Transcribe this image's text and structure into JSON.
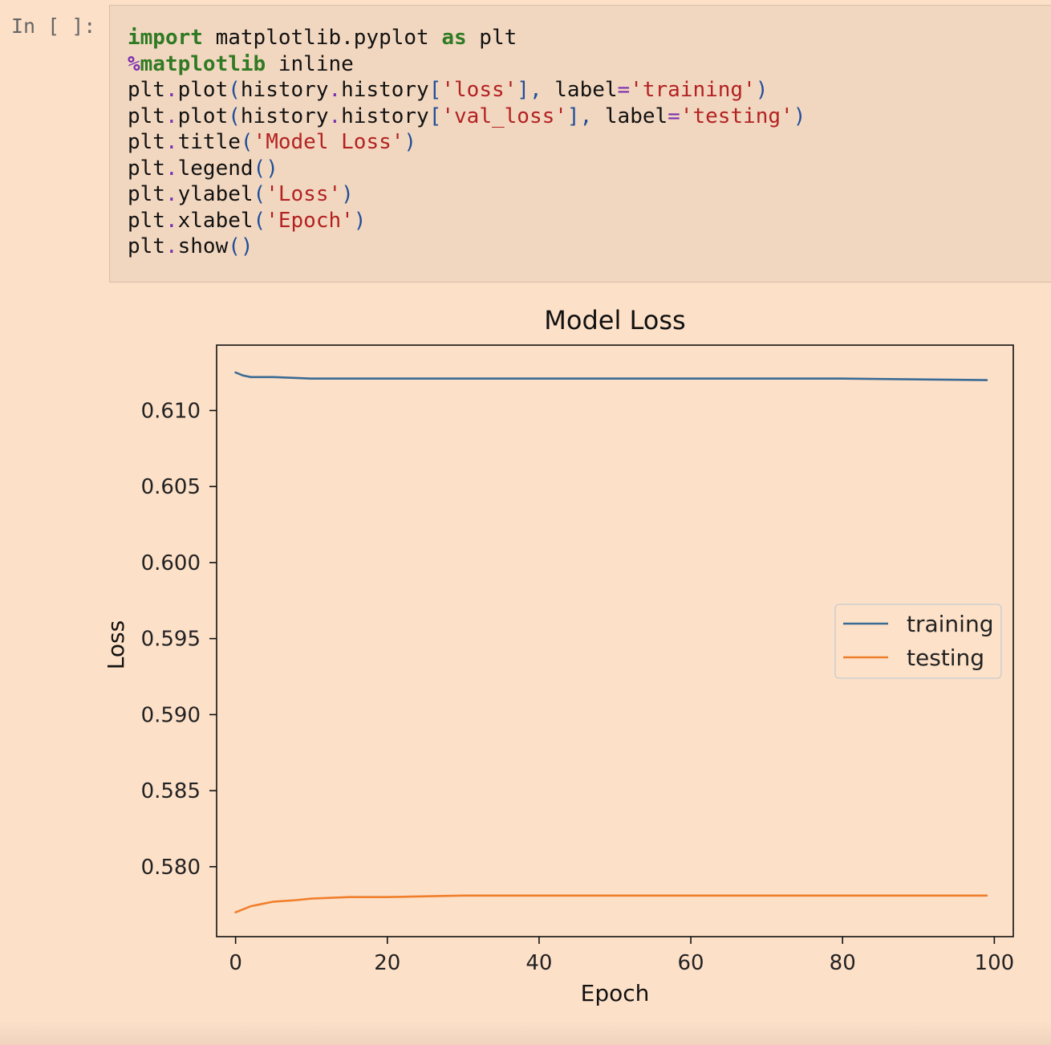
{
  "cell": {
    "prompt": "In [ ]:",
    "code_lines": [
      [
        {
          "t": "import",
          "c": "kw"
        },
        {
          "t": " matplotlib.pyplot ",
          "c": ""
        },
        {
          "t": "as",
          "c": "kw"
        },
        {
          "t": " plt",
          "c": ""
        }
      ],
      [
        {
          "t": "%",
          "c": "magic"
        },
        {
          "t": "matplotlib",
          "c": "magic-word"
        },
        {
          "t": " inline",
          "c": ""
        }
      ],
      [
        {
          "t": "plt",
          "c": ""
        },
        {
          "t": ".",
          "c": "op"
        },
        {
          "t": "plot",
          "c": ""
        },
        {
          "t": "(",
          "c": "punc"
        },
        {
          "t": "history",
          "c": ""
        },
        {
          "t": ".",
          "c": "op"
        },
        {
          "t": "history",
          "c": ""
        },
        {
          "t": "[",
          "c": "punc"
        },
        {
          "t": "'loss'",
          "c": "str"
        },
        {
          "t": "], ",
          "c": "punc"
        },
        {
          "t": "label",
          "c": ""
        },
        {
          "t": "=",
          "c": "op"
        },
        {
          "t": "'training'",
          "c": "str"
        },
        {
          "t": ")",
          "c": "punc"
        }
      ],
      [
        {
          "t": "plt",
          "c": ""
        },
        {
          "t": ".",
          "c": "op"
        },
        {
          "t": "plot",
          "c": ""
        },
        {
          "t": "(",
          "c": "punc"
        },
        {
          "t": "history",
          "c": ""
        },
        {
          "t": ".",
          "c": "op"
        },
        {
          "t": "history",
          "c": ""
        },
        {
          "t": "[",
          "c": "punc"
        },
        {
          "t": "'val_loss'",
          "c": "str"
        },
        {
          "t": "], ",
          "c": "punc"
        },
        {
          "t": "label",
          "c": ""
        },
        {
          "t": "=",
          "c": "op"
        },
        {
          "t": "'testing'",
          "c": "str"
        },
        {
          "t": ")",
          "c": "punc"
        }
      ],
      [
        {
          "t": "plt",
          "c": ""
        },
        {
          "t": ".",
          "c": "op"
        },
        {
          "t": "title",
          "c": ""
        },
        {
          "t": "(",
          "c": "punc"
        },
        {
          "t": "'Model Loss'",
          "c": "str"
        },
        {
          "t": ")",
          "c": "punc"
        }
      ],
      [
        {
          "t": "plt",
          "c": ""
        },
        {
          "t": ".",
          "c": "op"
        },
        {
          "t": "legend",
          "c": ""
        },
        {
          "t": "()",
          "c": "punc"
        }
      ],
      [
        {
          "t": "plt",
          "c": ""
        },
        {
          "t": ".",
          "c": "op"
        },
        {
          "t": "ylabel",
          "c": ""
        },
        {
          "t": "(",
          "c": "punc"
        },
        {
          "t": "'Loss'",
          "c": "str"
        },
        {
          "t": ")",
          "c": "punc"
        }
      ],
      [
        {
          "t": "plt",
          "c": ""
        },
        {
          "t": ".",
          "c": "op"
        },
        {
          "t": "xlabel",
          "c": ""
        },
        {
          "t": "(",
          "c": "punc"
        },
        {
          "t": "'Epoch'",
          "c": "str"
        },
        {
          "t": ")",
          "c": "punc"
        }
      ],
      [
        {
          "t": "plt",
          "c": ""
        },
        {
          "t": ".",
          "c": "op"
        },
        {
          "t": "show",
          "c": ""
        },
        {
          "t": "()",
          "c": "punc"
        }
      ]
    ]
  },
  "colors": {
    "background": "#fde0c8",
    "code_bg": "#f2d7c0",
    "training": "#3a6b94",
    "testing": "#f07f2c"
  },
  "chart_data": {
    "type": "line",
    "title": "Model Loss",
    "xlabel": "Epoch",
    "ylabel": "Loss",
    "xlim": [
      -2.5,
      102.5
    ],
    "ylim": [
      0.5754,
      0.6143
    ],
    "xticks": [
      0,
      20,
      40,
      60,
      80,
      100
    ],
    "xtick_labels": [
      "0",
      "20",
      "40",
      "60",
      "80",
      "100"
    ],
    "yticks": [
      0.58,
      0.585,
      0.59,
      0.595,
      0.6,
      0.605,
      0.61
    ],
    "ytick_labels": [
      "0.580",
      "0.585",
      "0.590",
      "0.595",
      "0.600",
      "0.605",
      "0.610"
    ],
    "grid": false,
    "legend_position": "center-right",
    "series": [
      {
        "name": "training",
        "color": "#3a6b94",
        "x": [
          0,
          1,
          2,
          3,
          5,
          10,
          20,
          40,
          60,
          80,
          99
        ],
        "y": [
          0.6125,
          0.6123,
          0.6122,
          0.6122,
          0.6122,
          0.6121,
          0.6121,
          0.6121,
          0.6121,
          0.6121,
          0.612
        ]
      },
      {
        "name": "testing",
        "color": "#f07f2c",
        "x": [
          0,
          1,
          2,
          3,
          5,
          8,
          10,
          15,
          20,
          30,
          40,
          60,
          80,
          99
        ],
        "y": [
          0.577,
          0.5772,
          0.5774,
          0.5775,
          0.5777,
          0.5778,
          0.5779,
          0.578,
          0.578,
          0.5781,
          0.5781,
          0.5781,
          0.5781,
          0.5781
        ]
      }
    ]
  }
}
